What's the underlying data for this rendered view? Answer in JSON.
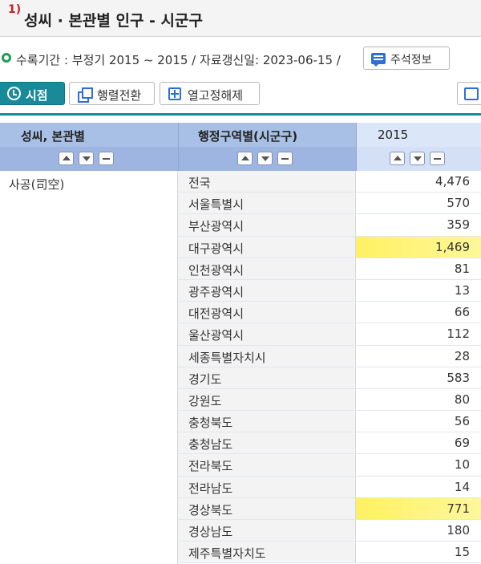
{
  "title": {
    "number": "1)",
    "text": "성씨 · 본관별 인구 - 시군구"
  },
  "info": {
    "text": "수록기간 : 부정기 2015 ~ 2015 / 자료갱신일: 2023-06-15 /",
    "notes_button": "주석정보",
    "accent_color": "#1e9e52"
  },
  "toolbar": {
    "view_label": "시점",
    "pivot_label": "행렬전환",
    "unfix_label": "열고정해제",
    "icons": [
      "clock-icon",
      "pivot-icon",
      "unfix-icon",
      "edge-icon"
    ]
  },
  "table": {
    "headers": [
      "성씨, 본관별",
      "행정구역별(시군구)",
      "2015"
    ],
    "surname": "사공(司空)",
    "highlight_color": "#fff05a",
    "rows": [
      {
        "region": "전국",
        "value": "4,476",
        "highlight": false
      },
      {
        "region": "서울특별시",
        "value": "570",
        "highlight": false
      },
      {
        "region": "부산광역시",
        "value": "359",
        "highlight": false
      },
      {
        "region": "대구광역시",
        "value": "1,469",
        "highlight": true
      },
      {
        "region": "인천광역시",
        "value": "81",
        "highlight": false
      },
      {
        "region": "광주광역시",
        "value": "13",
        "highlight": false
      },
      {
        "region": "대전광역시",
        "value": "66",
        "highlight": false
      },
      {
        "region": "울산광역시",
        "value": "112",
        "highlight": false
      },
      {
        "region": "세종특별자치시",
        "value": "28",
        "highlight": false
      },
      {
        "region": "경기도",
        "value": "583",
        "highlight": false
      },
      {
        "region": "강원도",
        "value": "80",
        "highlight": false
      },
      {
        "region": "충청북도",
        "value": "56",
        "highlight": false
      },
      {
        "region": "충청남도",
        "value": "69",
        "highlight": false
      },
      {
        "region": "전라북도",
        "value": "10",
        "highlight": false
      },
      {
        "region": "전라남도",
        "value": "14",
        "highlight": false
      },
      {
        "region": "경상북도",
        "value": "771",
        "highlight": true
      },
      {
        "region": "경상남도",
        "value": "180",
        "highlight": false
      },
      {
        "region": "제주특별자치도",
        "value": "15",
        "highlight": false
      }
    ]
  }
}
